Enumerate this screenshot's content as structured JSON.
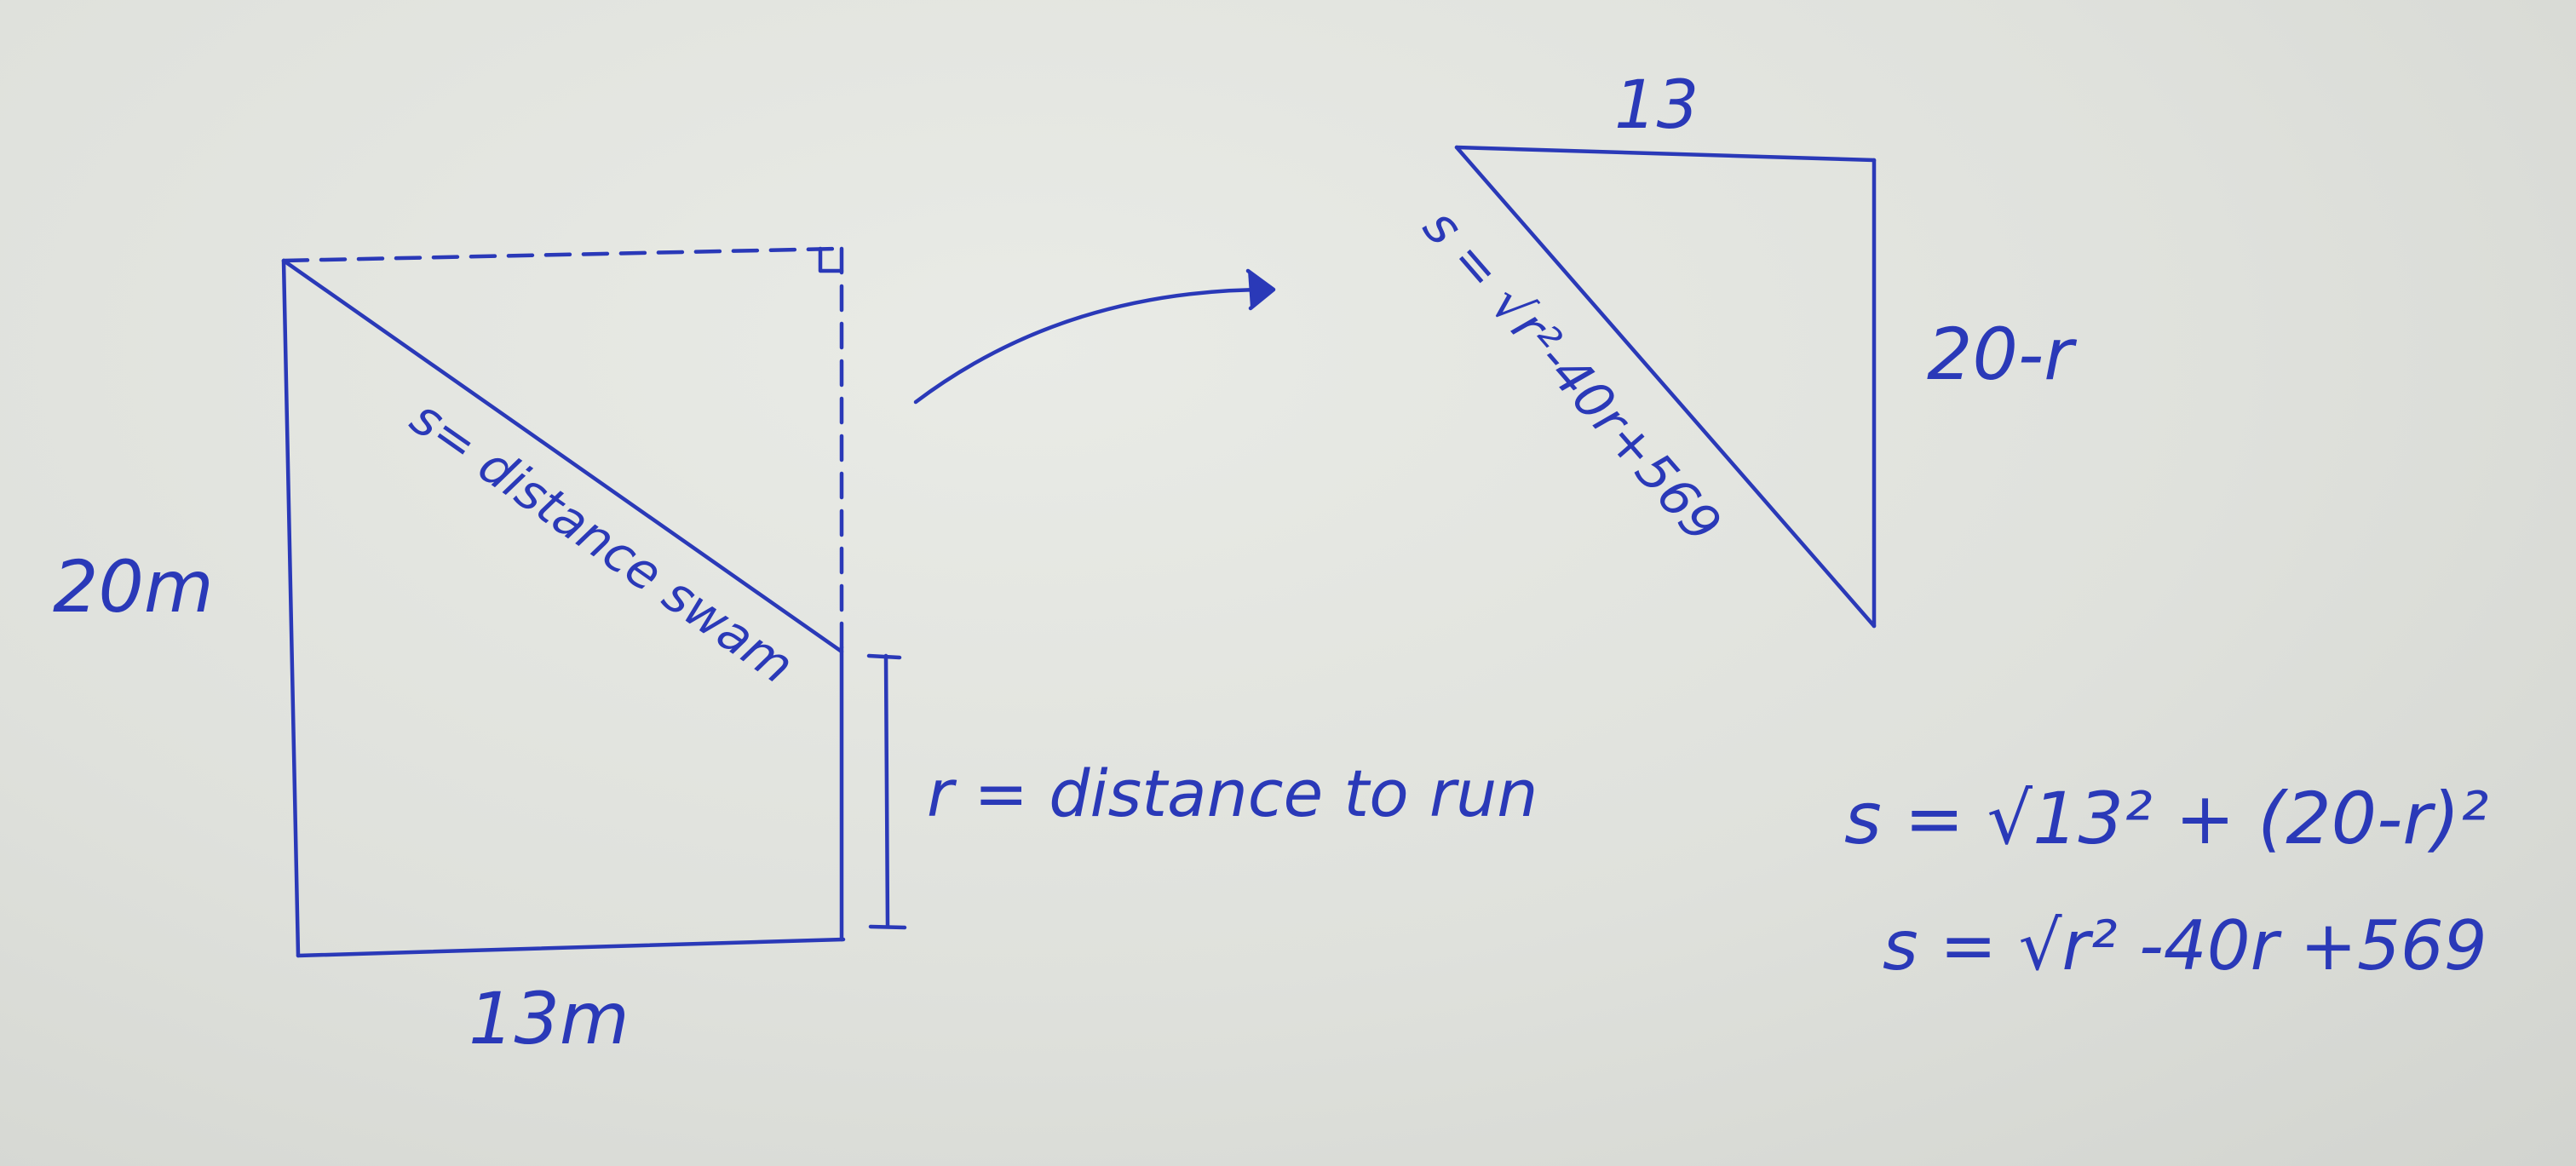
{
  "diagram": {
    "rectangle": {
      "side_label": "20m",
      "bottom_label": "13m",
      "diagonal_label": "s= distance swam",
      "run_label": "r = distance to run"
    },
    "triangle": {
      "top_label": "13",
      "side_label": "20-r",
      "hypotenuse_label": "s = √r²-40r+569"
    },
    "equations": {
      "line1": "s = √13² + (20-r)²",
      "line2": "s = √r² -40r +569"
    }
  }
}
